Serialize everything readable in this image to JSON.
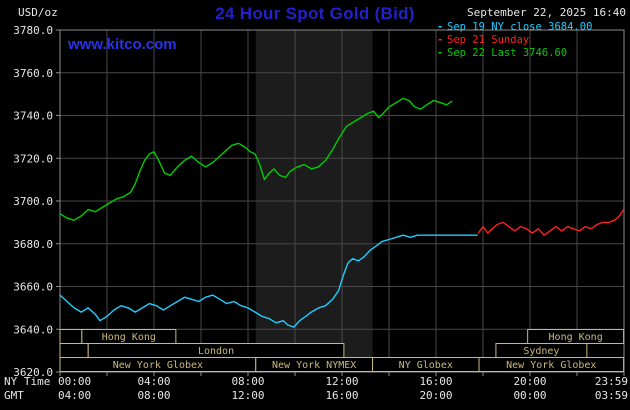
{
  "header": {
    "unit_label": "USD/oz",
    "title": "24 Hour Spot Gold (Bid)",
    "datetime": "September 22, 2025 16:40",
    "watermark": "www.kitco.com"
  },
  "legend": {
    "items": [
      {
        "marker": "-",
        "label": "Sep 19 NY close 3684.00",
        "color": "#22ccff"
      },
      {
        "marker": "-",
        "label": "Sep 21 Sunday",
        "color": "#ff2020"
      },
      {
        "marker": "-",
        "label": "Sep 22 Last 3746.60",
        "color": "#00cc00"
      }
    ]
  },
  "colors": {
    "background": "#000000",
    "title_blue": "#2121cd",
    "watermark_blue": "#2633e6",
    "text": "#e6e6e6",
    "grid": "#474747",
    "frame": "#8c8c8c",
    "session": "#c9ba7c",
    "nymex_band": "#1c1c1c"
  },
  "chart_data": {
    "type": "line",
    "title": "24 Hour Spot Gold (Bid)",
    "ylabel": "USD/oz",
    "ny_time_label": "NY Time",
    "gmt_label": "GMT",
    "xlim": [
      0,
      24
    ],
    "ylim": [
      3620,
      3780
    ],
    "grid": true,
    "legend_position": "top-right",
    "y_ticks": [
      "3780.0",
      "3760.0",
      "3740.0",
      "3720.0",
      "3700.0",
      "3680.0",
      "3660.0",
      "3640.0",
      "3620.0"
    ],
    "x_ticks": [
      {
        "h": 0,
        "ny": "00:00",
        "gmt": "04:00"
      },
      {
        "h": 4,
        "ny": "04:00",
        "gmt": "08:00"
      },
      {
        "h": 8,
        "ny": "08:00",
        "gmt": "12:00"
      },
      {
        "h": 12,
        "ny": "12:00",
        "gmt": "16:00"
      },
      {
        "h": 16,
        "ny": "16:00",
        "gmt": "20:00"
      },
      {
        "h": 20,
        "ny": "20:00",
        "gmt": "00:00"
      },
      {
        "h": 23.983,
        "ny": "23:59",
        "gmt": "03:59"
      }
    ],
    "highlight_bands": [
      {
        "start": 8.33,
        "end": 13.3,
        "label": "New York NYMEX floor hours",
        "color": "#1c1c1c"
      }
    ],
    "series": [
      {
        "id": "sep19",
        "name": "Sep 19 NY close 3684.00",
        "color": "#22ccff",
        "points": [
          [
            0,
            3656
          ],
          [
            0.3,
            3653
          ],
          [
            0.6,
            3650
          ],
          [
            0.9,
            3648
          ],
          [
            1.2,
            3650
          ],
          [
            1.5,
            3647
          ],
          [
            1.7,
            3644
          ],
          [
            2,
            3646
          ],
          [
            2.3,
            3649
          ],
          [
            2.6,
            3651
          ],
          [
            2.9,
            3650
          ],
          [
            3.2,
            3648
          ],
          [
            3.5,
            3650
          ],
          [
            3.8,
            3652
          ],
          [
            4.1,
            3651
          ],
          [
            4.4,
            3649
          ],
          [
            4.7,
            3651
          ],
          [
            5,
            3653
          ],
          [
            5.3,
            3655
          ],
          [
            5.6,
            3654
          ],
          [
            5.9,
            3653
          ],
          [
            6.2,
            3655
          ],
          [
            6.5,
            3656
          ],
          [
            6.8,
            3654
          ],
          [
            7.1,
            3652
          ],
          [
            7.4,
            3653
          ],
          [
            7.7,
            3651
          ],
          [
            8,
            3650
          ],
          [
            8.3,
            3648
          ],
          [
            8.6,
            3646
          ],
          [
            8.9,
            3645
          ],
          [
            9.2,
            3643
          ],
          [
            9.5,
            3644
          ],
          [
            9.7,
            3642
          ],
          [
            9.95,
            3641
          ],
          [
            10.2,
            3644
          ],
          [
            10.45,
            3646
          ],
          [
            10.7,
            3648
          ],
          [
            11,
            3650
          ],
          [
            11.3,
            3651
          ],
          [
            11.6,
            3654
          ],
          [
            11.85,
            3658
          ],
          [
            12.05,
            3665
          ],
          [
            12.25,
            3671
          ],
          [
            12.45,
            3673
          ],
          [
            12.7,
            3672
          ],
          [
            12.95,
            3674
          ],
          [
            13.2,
            3677
          ],
          [
            13.45,
            3679
          ],
          [
            13.7,
            3681
          ],
          [
            14,
            3682
          ],
          [
            14.3,
            3683
          ],
          [
            14.6,
            3684
          ],
          [
            14.9,
            3683
          ],
          [
            15.2,
            3684
          ],
          [
            15.6,
            3684
          ],
          [
            16.1,
            3684
          ],
          [
            16.7,
            3684
          ],
          [
            17.3,
            3684
          ],
          [
            17.75,
            3684
          ]
        ]
      },
      {
        "id": "sep21",
        "name": "Sep 21 Sunday",
        "color": "#ff2020",
        "points": [
          [
            17.8,
            3685
          ],
          [
            18,
            3688
          ],
          [
            18.2,
            3685
          ],
          [
            18.4,
            3687
          ],
          [
            18.6,
            3689
          ],
          [
            18.85,
            3690
          ],
          [
            19.1,
            3688
          ],
          [
            19.35,
            3686
          ],
          [
            19.6,
            3688
          ],
          [
            19.85,
            3687
          ],
          [
            20.1,
            3685
          ],
          [
            20.35,
            3687
          ],
          [
            20.6,
            3684
          ],
          [
            20.85,
            3686
          ],
          [
            21.1,
            3688
          ],
          [
            21.35,
            3686
          ],
          [
            21.6,
            3688
          ],
          [
            21.85,
            3687
          ],
          [
            22.1,
            3686
          ],
          [
            22.35,
            3688
          ],
          [
            22.6,
            3687
          ],
          [
            22.85,
            3689
          ],
          [
            23.1,
            3690
          ],
          [
            23.35,
            3690
          ],
          [
            23.6,
            3691
          ],
          [
            23.8,
            3693
          ],
          [
            23.983,
            3696
          ]
        ]
      },
      {
        "id": "sep22",
        "name": "Sep 22 Last 3746.60",
        "color": "#00cc00",
        "points": [
          [
            0,
            3694
          ],
          [
            0.3,
            3692
          ],
          [
            0.6,
            3691
          ],
          [
            0.9,
            3693
          ],
          [
            1.2,
            3696
          ],
          [
            1.5,
            3695
          ],
          [
            1.8,
            3697
          ],
          [
            2.1,
            3699
          ],
          [
            2.4,
            3701
          ],
          [
            2.7,
            3702
          ],
          [
            3,
            3704
          ],
          [
            3.2,
            3708
          ],
          [
            3.4,
            3714
          ],
          [
            3.6,
            3719
          ],
          [
            3.8,
            3722
          ],
          [
            4,
            3723
          ],
          [
            4.2,
            3719
          ],
          [
            4.45,
            3713
          ],
          [
            4.7,
            3712
          ],
          [
            5,
            3716
          ],
          [
            5.3,
            3719
          ],
          [
            5.6,
            3721
          ],
          [
            5.9,
            3718
          ],
          [
            6.2,
            3716
          ],
          [
            6.5,
            3718
          ],
          [
            6.8,
            3721
          ],
          [
            7,
            3723
          ],
          [
            7.3,
            3726
          ],
          [
            7.6,
            3727
          ],
          [
            7.9,
            3725
          ],
          [
            8.1,
            3723
          ],
          [
            8.3,
            3722
          ],
          [
            8.5,
            3717
          ],
          [
            8.7,
            3710
          ],
          [
            8.9,
            3713
          ],
          [
            9.1,
            3715
          ],
          [
            9.35,
            3712
          ],
          [
            9.6,
            3711
          ],
          [
            9.8,
            3714
          ],
          [
            10.1,
            3716
          ],
          [
            10.4,
            3717
          ],
          [
            10.7,
            3715
          ],
          [
            11,
            3716
          ],
          [
            11.3,
            3719
          ],
          [
            11.6,
            3724
          ],
          [
            11.9,
            3730
          ],
          [
            12.2,
            3735
          ],
          [
            12.5,
            3737
          ],
          [
            12.8,
            3739
          ],
          [
            13.1,
            3741
          ],
          [
            13.35,
            3742
          ],
          [
            13.55,
            3739
          ],
          [
            13.75,
            3741
          ],
          [
            14,
            3744
          ],
          [
            14.3,
            3746
          ],
          [
            14.6,
            3748
          ],
          [
            14.85,
            3747
          ],
          [
            15.1,
            3744
          ],
          [
            15.35,
            3743
          ],
          [
            15.6,
            3745
          ],
          [
            15.9,
            3747
          ],
          [
            16.2,
            3746
          ],
          [
            16.45,
            3745
          ],
          [
            16.67,
            3746.6
          ]
        ]
      }
    ],
    "sessions": [
      {
        "row": 0,
        "start": 0,
        "end": 0.93,
        "label": ""
      },
      {
        "row": 0,
        "start": 0.93,
        "end": 4.93,
        "label": "Hong Kong"
      },
      {
        "row": 0,
        "start": 19.9,
        "end": 23.983,
        "label": "Hong Kong"
      },
      {
        "row": 1,
        "start": 0,
        "end": 1.2,
        "label": ""
      },
      {
        "row": 1,
        "start": 1.2,
        "end": 12.08,
        "label": "London"
      },
      {
        "row": 1,
        "start": 18.55,
        "end": 22.42,
        "label": "Sydney"
      },
      {
        "row": 2,
        "start": 0,
        "end": 8.33,
        "label": "New York Globex"
      },
      {
        "row": 2,
        "start": 8.33,
        "end": 13.3,
        "label": "New York NYMEX"
      },
      {
        "row": 2,
        "start": 13.3,
        "end": 17.83,
        "label": "NY Globex"
      },
      {
        "row": 2,
        "start": 17.83,
        "end": 23.983,
        "label": "New York Globex"
      }
    ]
  }
}
